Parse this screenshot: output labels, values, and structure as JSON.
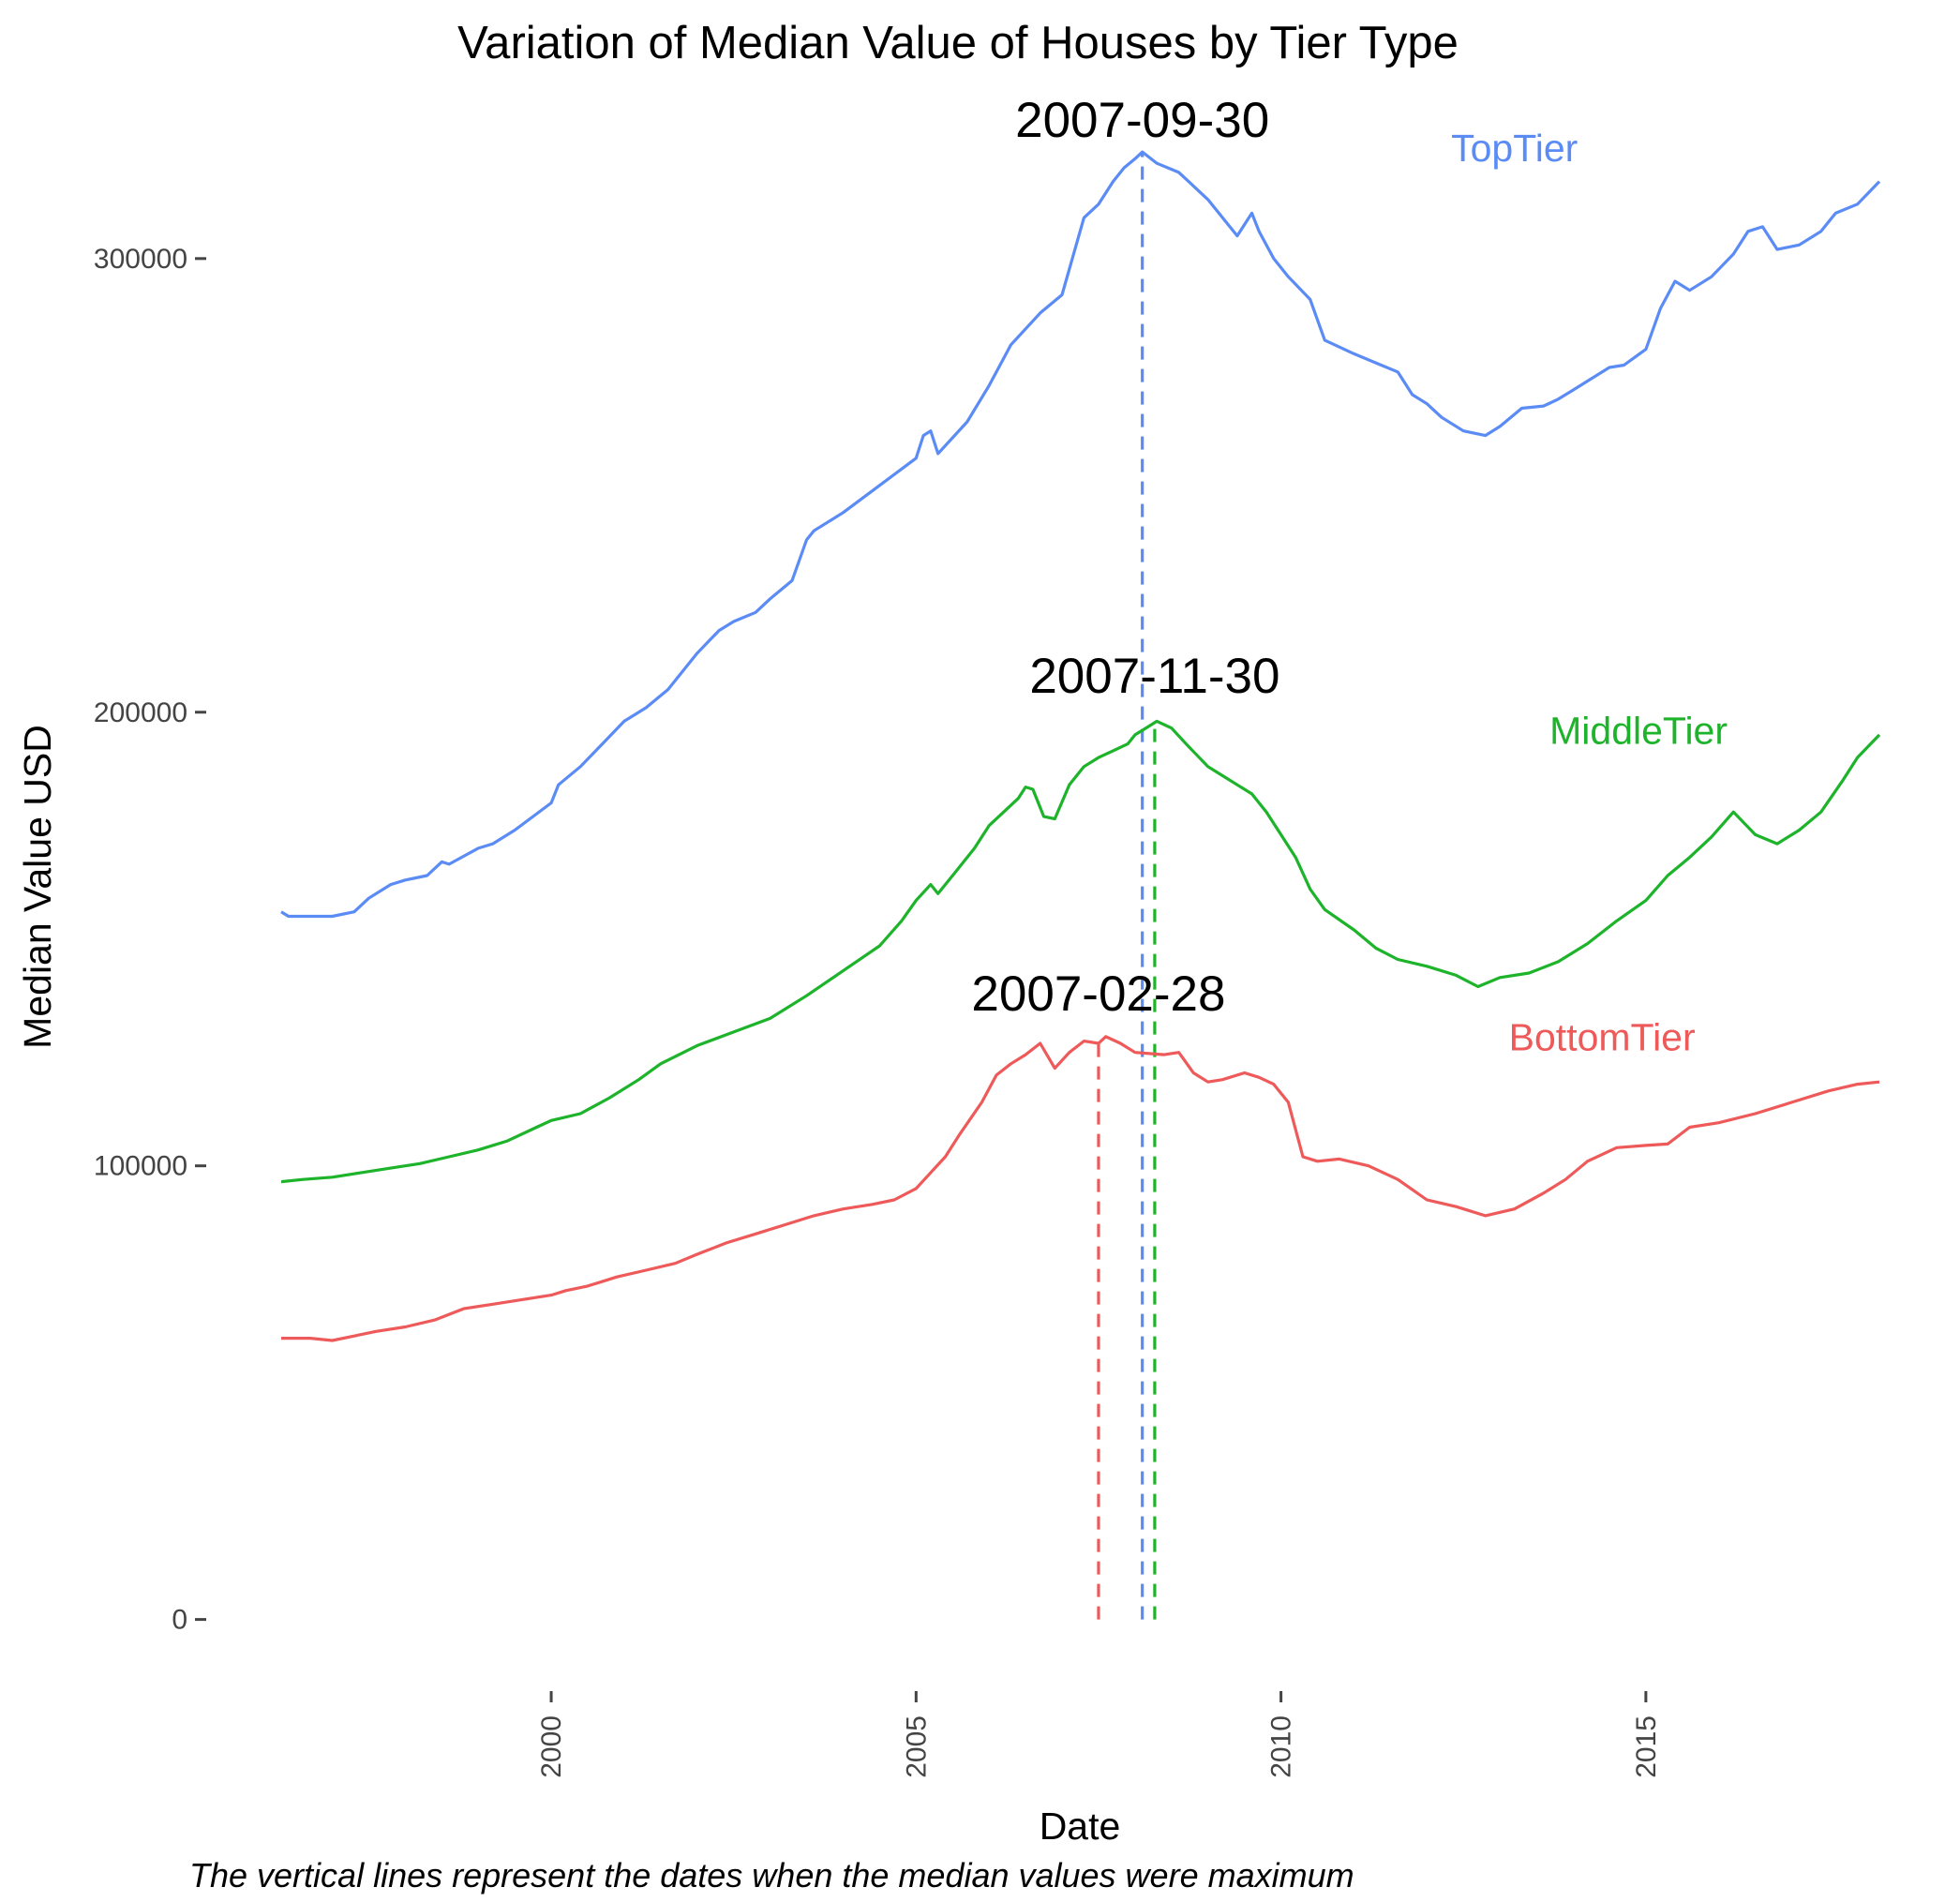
{
  "chart_data": {
    "type": "line",
    "title": "Variation of Median Value of Houses by Tier Type",
    "xlabel": "Date",
    "ylabel": "Median Value USD",
    "caption": "The vertical lines represent the dates when the median values were maximum",
    "xlim": [
      1996.3,
      2018.2
    ],
    "ylim": [
      -10000,
      326000
    ],
    "x_ticks": [
      2000,
      2005,
      2010,
      2015
    ],
    "y_ticks": [
      0,
      100000,
      200000,
      300000
    ],
    "grid": false,
    "legend": "none",
    "series": [
      {
        "name": "TopTier",
        "color": "#5B8BF5",
        "label_x": 2013.2,
        "label_y": 321500,
        "points": [
          [
            1996.3,
            156000
          ],
          [
            1996.4,
            155000
          ],
          [
            1997.0,
            155000
          ],
          [
            1997.3,
            156000
          ],
          [
            1997.5,
            159000
          ],
          [
            1997.8,
            162000
          ],
          [
            1998.0,
            163000
          ],
          [
            1998.3,
            164000
          ],
          [
            1998.5,
            167000
          ],
          [
            1998.6,
            166500
          ],
          [
            1999.0,
            170000
          ],
          [
            1999.2,
            171000
          ],
          [
            1999.5,
            174000
          ],
          [
            2000.0,
            180000
          ],
          [
            2000.1,
            184000
          ],
          [
            2000.4,
            188000
          ],
          [
            2000.7,
            193000
          ],
          [
            2001.0,
            198000
          ],
          [
            2001.3,
            201000
          ],
          [
            2001.6,
            205000
          ],
          [
            2002.0,
            213000
          ],
          [
            2002.3,
            218000
          ],
          [
            2002.5,
            220000
          ],
          [
            2002.8,
            222000
          ],
          [
            2003.0,
            225000
          ],
          [
            2003.3,
            229000
          ],
          [
            2003.5,
            238000
          ],
          [
            2003.6,
            240000
          ],
          [
            2004.0,
            244000
          ],
          [
            2004.5,
            250000
          ],
          [
            2005.0,
            256000
          ],
          [
            2005.1,
            261000
          ],
          [
            2005.2,
            262000
          ],
          [
            2005.3,
            257000
          ],
          [
            2005.7,
            264000
          ],
          [
            2006.0,
            272000
          ],
          [
            2006.3,
            281000
          ],
          [
            2006.7,
            288000
          ],
          [
            2007.0,
            292000
          ],
          [
            2007.3,
            309000
          ],
          [
            2007.5,
            312000
          ],
          [
            2007.7,
            317000
          ],
          [
            2007.85,
            320000
          ],
          [
            2008.0,
            322000
          ],
          [
            2008.1,
            323500
          ],
          [
            2008.3,
            321000
          ],
          [
            2008.6,
            319000
          ],
          [
            2008.8,
            316000
          ],
          [
            2009.0,
            313000
          ],
          [
            2009.2,
            309000
          ],
          [
            2009.4,
            305000
          ],
          [
            2009.6,
            310000
          ],
          [
            2009.7,
            306000
          ],
          [
            2009.9,
            300000
          ],
          [
            2010.1,
            296000
          ],
          [
            2010.4,
            291000
          ],
          [
            2010.6,
            282000
          ],
          [
            2011.0,
            279000
          ],
          [
            2011.3,
            277000
          ],
          [
            2011.6,
            275000
          ],
          [
            2011.8,
            270000
          ],
          [
            2012.0,
            268000
          ],
          [
            2012.2,
            265000
          ],
          [
            2012.5,
            262000
          ],
          [
            2012.8,
            261000
          ],
          [
            2013.0,
            263000
          ],
          [
            2013.3,
            267000
          ],
          [
            2013.6,
            267500
          ],
          [
            2013.8,
            269000
          ],
          [
            2014.0,
            271000
          ],
          [
            2014.2,
            273000
          ],
          [
            2014.5,
            276000
          ],
          [
            2014.7,
            276500
          ],
          [
            2015.0,
            280000
          ],
          [
            2015.2,
            289000
          ],
          [
            2015.4,
            295000
          ],
          [
            2015.6,
            293000
          ],
          [
            2015.9,
            296000
          ],
          [
            2016.2,
            301000
          ],
          [
            2016.4,
            306000
          ],
          [
            2016.6,
            307000
          ],
          [
            2016.8,
            302000
          ],
          [
            2017.1,
            303000
          ],
          [
            2017.4,
            306000
          ],
          [
            2017.6,
            310000
          ],
          [
            2017.9,
            312000
          ],
          [
            2018.2,
            317000
          ]
        ]
      },
      {
        "name": "MiddleTier",
        "color": "#1DB32A",
        "label_x": 2014.9,
        "label_y": 193000,
        "points": [
          [
            1996.3,
            96500
          ],
          [
            1996.6,
            97000
          ],
          [
            1997.0,
            97500
          ],
          [
            1997.4,
            98500
          ],
          [
            1997.8,
            99500
          ],
          [
            1998.2,
            100500
          ],
          [
            1998.6,
            102000
          ],
          [
            1999.0,
            103500
          ],
          [
            1999.4,
            105500
          ],
          [
            1999.8,
            108500
          ],
          [
            2000.0,
            110000
          ],
          [
            2000.4,
            111500
          ],
          [
            2000.8,
            115000
          ],
          [
            2001.2,
            119000
          ],
          [
            2001.5,
            122500
          ],
          [
            2002.0,
            126500
          ],
          [
            2002.5,
            129500
          ],
          [
            2003.0,
            132500
          ],
          [
            2003.5,
            137500
          ],
          [
            2004.0,
            143000
          ],
          [
            2004.5,
            148500
          ],
          [
            2004.8,
            154000
          ],
          [
            2005.0,
            158500
          ],
          [
            2005.2,
            162000
          ],
          [
            2005.3,
            160000
          ],
          [
            2005.5,
            164000
          ],
          [
            2005.8,
            170000
          ],
          [
            2006.0,
            175000
          ],
          [
            2006.2,
            178000
          ],
          [
            2006.4,
            181000
          ],
          [
            2006.5,
            183500
          ],
          [
            2006.6,
            183000
          ],
          [
            2006.75,
            177000
          ],
          [
            2006.9,
            176500
          ],
          [
            2007.1,
            184000
          ],
          [
            2007.3,
            188000
          ],
          [
            2007.5,
            190000
          ],
          [
            2007.7,
            191500
          ],
          [
            2007.9,
            193000
          ],
          [
            2008.0,
            195000
          ],
          [
            2008.2,
            197000
          ],
          [
            2008.3,
            198000
          ],
          [
            2008.5,
            196500
          ],
          [
            2008.7,
            193000
          ],
          [
            2009.0,
            188000
          ],
          [
            2009.2,
            186000
          ],
          [
            2009.4,
            184000
          ],
          [
            2009.6,
            182000
          ],
          [
            2009.8,
            178000
          ],
          [
            2010.0,
            173000
          ],
          [
            2010.2,
            168000
          ],
          [
            2010.4,
            161000
          ],
          [
            2010.6,
            156500
          ],
          [
            2011.0,
            152000
          ],
          [
            2011.3,
            148000
          ],
          [
            2011.6,
            145500
          ],
          [
            2012.0,
            144000
          ],
          [
            2012.4,
            142000
          ],
          [
            2012.7,
            139500
          ],
          [
            2013.0,
            141500
          ],
          [
            2013.4,
            142500
          ],
          [
            2013.8,
            145000
          ],
          [
            2014.2,
            149000
          ],
          [
            2014.6,
            154000
          ],
          [
            2015.0,
            158500
          ],
          [
            2015.3,
            164000
          ],
          [
            2015.6,
            168000
          ],
          [
            2015.9,
            172500
          ],
          [
            2016.2,
            178000
          ],
          [
            2016.5,
            173000
          ],
          [
            2016.8,
            171000
          ],
          [
            2017.1,
            174000
          ],
          [
            2017.4,
            178000
          ],
          [
            2017.7,
            185000
          ],
          [
            2017.9,
            190000
          ],
          [
            2018.2,
            195000
          ]
        ]
      },
      {
        "name": "BottomTier",
        "color": "#EE5A5A",
        "label_x": 2014.4,
        "label_y": 125500,
        "points": [
          [
            1996.3,
            62000
          ],
          [
            1996.7,
            62000
          ],
          [
            1997.0,
            61500
          ],
          [
            1997.3,
            62500
          ],
          [
            1997.6,
            63500
          ],
          [
            1998.0,
            64500
          ],
          [
            1998.4,
            66000
          ],
          [
            1998.8,
            68500
          ],
          [
            1999.2,
            69500
          ],
          [
            1999.6,
            70500
          ],
          [
            2000.0,
            71500
          ],
          [
            2000.2,
            72500
          ],
          [
            2000.5,
            73500
          ],
          [
            2000.9,
            75500
          ],
          [
            2001.3,
            77000
          ],
          [
            2001.7,
            78500
          ],
          [
            2002.0,
            80500
          ],
          [
            2002.4,
            83000
          ],
          [
            2002.8,
            85000
          ],
          [
            2003.2,
            87000
          ],
          [
            2003.6,
            89000
          ],
          [
            2004.0,
            90500
          ],
          [
            2004.4,
            91500
          ],
          [
            2004.7,
            92500
          ],
          [
            2005.0,
            95000
          ],
          [
            2005.2,
            98500
          ],
          [
            2005.4,
            102000
          ],
          [
            2005.6,
            107000
          ],
          [
            2005.9,
            114000
          ],
          [
            2006.1,
            120000
          ],
          [
            2006.3,
            122500
          ],
          [
            2006.5,
            124500
          ],
          [
            2006.7,
            127000
          ],
          [
            2006.9,
            121500
          ],
          [
            2007.1,
            125000
          ],
          [
            2007.3,
            127500
          ],
          [
            2007.5,
            127000
          ],
          [
            2007.6,
            128500
          ],
          [
            2007.8,
            127000
          ],
          [
            2008.0,
            125000
          ],
          [
            2008.4,
            124500
          ],
          [
            2008.6,
            125000
          ],
          [
            2008.8,
            120500
          ],
          [
            2009.0,
            118500
          ],
          [
            2009.2,
            119000
          ],
          [
            2009.5,
            120500
          ],
          [
            2009.7,
            119500
          ],
          [
            2009.9,
            118000
          ],
          [
            2010.1,
            114000
          ],
          [
            2010.3,
            102000
          ],
          [
            2010.5,
            101000
          ],
          [
            2010.8,
            101500
          ],
          [
            2011.2,
            100000
          ],
          [
            2011.6,
            97000
          ],
          [
            2012.0,
            92500
          ],
          [
            2012.4,
            91000
          ],
          [
            2012.8,
            89000
          ],
          [
            2013.2,
            90500
          ],
          [
            2013.6,
            94000
          ],
          [
            2013.9,
            97000
          ],
          [
            2014.2,
            101000
          ],
          [
            2014.6,
            104000
          ],
          [
            2015.0,
            104500
          ],
          [
            2015.3,
            104800
          ],
          [
            2015.6,
            108500
          ],
          [
            2016.0,
            109500
          ],
          [
            2016.5,
            111500
          ],
          [
            2017.0,
            114000
          ],
          [
            2017.5,
            116500
          ],
          [
            2017.9,
            118000
          ],
          [
            2018.2,
            118500
          ]
        ]
      }
    ],
    "peaks": [
      {
        "series": "TopTier",
        "date_label": "2007-09-30",
        "x": 2008.1,
        "label_y": 321000,
        "color": "#5B8BF5"
      },
      {
        "series": "MiddleTier",
        "date_label": "2007-11-30",
        "x": 2008.27,
        "label_y": 198500,
        "color": "#1DB32A"
      },
      {
        "series": "BottomTier",
        "date_label": "2007-02-28",
        "x": 2007.5,
        "label_y": 128500,
        "color": "#EE5A5A"
      }
    ]
  }
}
